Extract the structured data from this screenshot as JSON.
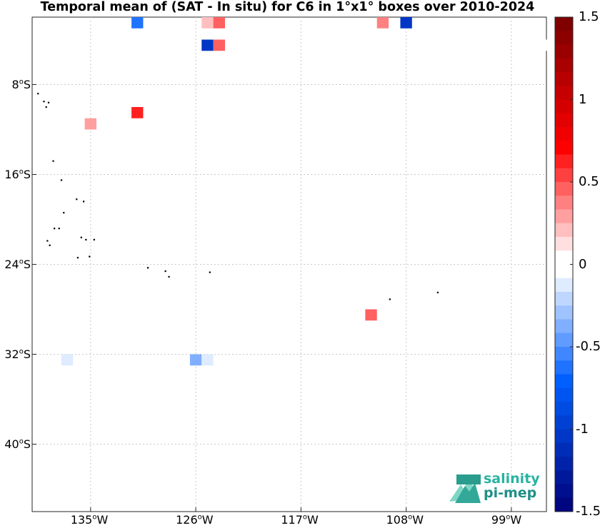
{
  "title": "Temporal mean of (SAT - In situ) for C6 in 1°x1° boxes over 2010-2024",
  "map": {
    "lon_range": [
      -140,
      -96
    ],
    "lat_range": [
      -46,
      -2
    ],
    "xticks": [
      {
        "lon": -135,
        "label_deg": "135",
        "label_hemi": "W"
      },
      {
        "lon": -126,
        "label_deg": "126",
        "label_hemi": "W"
      },
      {
        "lon": -117,
        "label_deg": "117",
        "label_hemi": "W"
      },
      {
        "lon": -108,
        "label_deg": "108",
        "label_hemi": "W"
      },
      {
        "lon": -99,
        "label_deg": "99",
        "label_hemi": "W"
      }
    ],
    "yticks": [
      {
        "lat": -8,
        "label_deg": "8",
        "label_hemi": "S"
      },
      {
        "lat": -16,
        "label_deg": "16",
        "label_hemi": "S"
      },
      {
        "lat": -24,
        "label_deg": "24",
        "label_hemi": "S"
      },
      {
        "lat": -32,
        "label_deg": "32",
        "label_hemi": "S"
      },
      {
        "lat": -40,
        "label_deg": "40",
        "label_hemi": "S"
      }
    ],
    "boxes": [
      {
        "lon": -131,
        "lat": -2.5,
        "value": -0.6
      },
      {
        "lon": -125,
        "lat": -2.5,
        "value": 0.2
      },
      {
        "lon": -124,
        "lat": -2.5,
        "value": 0.5
      },
      {
        "lon": -110,
        "lat": -2.5,
        "value": 0.35
      },
      {
        "lon": -108,
        "lat": -2.5,
        "value": -1.0
      },
      {
        "lon": -125,
        "lat": -4.5,
        "value": -1.0
      },
      {
        "lon": -124,
        "lat": -4.5,
        "value": 0.45
      },
      {
        "lon": -96,
        "lat": -4.5,
        "value": -0.05
      },
      {
        "lon": -131,
        "lat": -10.5,
        "value": 0.6
      },
      {
        "lon": -135,
        "lat": -11.5,
        "value": 0.3
      },
      {
        "lon": -111,
        "lat": -28.5,
        "value": 0.45
      },
      {
        "lon": -137,
        "lat": -32.5,
        "value": -0.15
      },
      {
        "lon": -126,
        "lat": -32.5,
        "value": -0.35
      },
      {
        "lon": -125,
        "lat": -32.5,
        "value": -0.15
      }
    ],
    "islands": [
      {
        "lon": -139.5,
        "lat": -8.8
      },
      {
        "lon": -139,
        "lat": -9.5
      },
      {
        "lon": -138.8,
        "lat": -10
      },
      {
        "lon": -138.6,
        "lat": -9.6
      },
      {
        "lon": -138.2,
        "lat": -14.8
      },
      {
        "lon": -137.5,
        "lat": -16.5
      },
      {
        "lon": -137.3,
        "lat": -19.4
      },
      {
        "lon": -136.2,
        "lat": -18.2
      },
      {
        "lon": -135.6,
        "lat": -18.4
      },
      {
        "lon": -135.8,
        "lat": -21.6
      },
      {
        "lon": -135.4,
        "lat": -21.8
      },
      {
        "lon": -134.7,
        "lat": -21.8
      },
      {
        "lon": -138.7,
        "lat": -21.9
      },
      {
        "lon": -138.5,
        "lat": -22.3
      },
      {
        "lon": -138.1,
        "lat": -20.8
      },
      {
        "lon": -137.7,
        "lat": -20.8
      },
      {
        "lon": -136.1,
        "lat": -23.4
      },
      {
        "lon": -135.1,
        "lat": -23.3
      },
      {
        "lon": -130.1,
        "lat": -24.3
      },
      {
        "lon": -128.3,
        "lat": -25.1
      },
      {
        "lon": -128.6,
        "lat": -24.6
      },
      {
        "lon": -124.8,
        "lat": -24.7
      },
      {
        "lon": -109.4,
        "lat": -27.1
      },
      {
        "lon": -105.3,
        "lat": -26.5
      }
    ]
  },
  "colorbar": {
    "range": [
      -1.5,
      1.5
    ],
    "ticks": [
      {
        "value": 1.5,
        "label": "1.5"
      },
      {
        "value": 1,
        "label": "1"
      },
      {
        "value": 0.5,
        "label": "0.5"
      },
      {
        "value": 0,
        "label": "0"
      },
      {
        "value": -0.5,
        "label": "-0.5"
      },
      {
        "value": -1,
        "label": "-1"
      },
      {
        "value": -1.5,
        "label": "-1.5"
      }
    ],
    "colors_top_to_bottom": [
      "#800000",
      "#8d0000",
      "#9b0000",
      "#a90000",
      "#b70000",
      "#c60000",
      "#d40000",
      "#e20000",
      "#f10000",
      "#ff0000",
      "#ff2020",
      "#ff4040",
      "#ff6060",
      "#ff8080",
      "#ff9f9f",
      "#ffbfbf",
      "#ffdfdf",
      "#ffffff",
      "#ffffff",
      "#dfebff",
      "#bfd7ff",
      "#9fc3ff",
      "#80afff",
      "#609bff",
      "#4087ff",
      "#2073ff",
      "#005fff",
      "#0055f1",
      "#004be2",
      "#0041d4",
      "#0037c6",
      "#002db7",
      "#0023a9",
      "#00199b",
      "#000f8d",
      "#000580"
    ]
  },
  "logo": {
    "line1": "salinity",
    "line2": "pi-mep"
  }
}
